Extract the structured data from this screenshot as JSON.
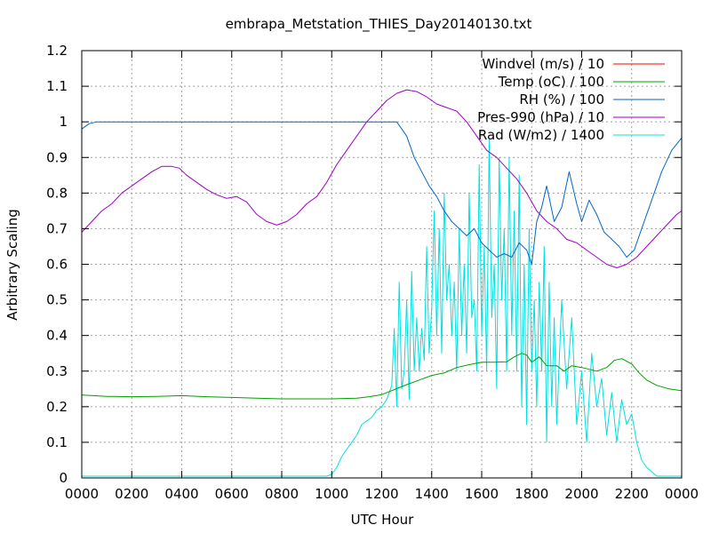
{
  "chart_data": {
    "type": "line",
    "title": "embrapa_Metstation_THIES_Day20140130.txt",
    "xlabel": "UTC Hour",
    "ylabel": "Arbitrary Scaling",
    "xlim": [
      0,
      24
    ],
    "ylim": [
      0,
      1.2
    ],
    "x_ticks": [
      0,
      2,
      4,
      6,
      8,
      10,
      12,
      14,
      16,
      18,
      20,
      22,
      24
    ],
    "x_tick_labels": [
      "0000",
      "0200",
      "0400",
      "0600",
      "0800",
      "1000",
      "1200",
      "1400",
      "1600",
      "1800",
      "2000",
      "2200",
      "0000"
    ],
    "y_ticks": [
      0,
      0.1,
      0.2,
      0.3,
      0.4,
      0.5,
      0.6,
      0.7,
      0.8,
      0.9,
      1,
      1.1,
      1.2
    ],
    "y_tick_labels": [
      "0",
      "0.1",
      "0.2",
      "0.3",
      "0.4",
      "0.5",
      "0.6",
      "0.7",
      "0.8",
      "0.9",
      "1",
      "1.1",
      "1.2"
    ],
    "grid": true,
    "legend_position": "top-right",
    "series": [
      {
        "name": "Windvel (m/s) / 10",
        "color": "#ff0000",
        "x": [],
        "y": []
      },
      {
        "name": "Temp (oC) / 100",
        "color": "#00a000",
        "x": [
          0,
          1,
          2,
          3,
          4,
          5,
          6,
          7,
          8,
          9,
          10,
          11,
          11.5,
          12,
          12.5,
          13,
          13.5,
          14,
          14.5,
          15,
          15.5,
          16,
          16.5,
          17,
          17.3,
          17.6,
          17.8,
          18,
          18.3,
          18.6,
          19,
          19.3,
          19.6,
          20,
          20.3,
          20.6,
          21,
          21.3,
          21.6,
          22,
          22.3,
          22.6,
          23,
          23.5,
          24
        ],
        "y": [
          0.233,
          0.229,
          0.228,
          0.229,
          0.231,
          0.228,
          0.226,
          0.224,
          0.222,
          0.222,
          0.222,
          0.224,
          0.228,
          0.234,
          0.248,
          0.262,
          0.275,
          0.288,
          0.295,
          0.31,
          0.318,
          0.325,
          0.325,
          0.326,
          0.34,
          0.35,
          0.345,
          0.325,
          0.34,
          0.315,
          0.315,
          0.3,
          0.315,
          0.31,
          0.305,
          0.3,
          0.31,
          0.33,
          0.335,
          0.32,
          0.295,
          0.275,
          0.26,
          0.25,
          0.245
        ]
      },
      {
        "name": "RH (%) / 100",
        "color": "#0066cc",
        "x": [
          0,
          0.3,
          0.6,
          1,
          2,
          4,
          6,
          8,
          10,
          12,
          12.6,
          13,
          13.3,
          13.6,
          13.9,
          14.2,
          14.5,
          14.8,
          15.1,
          15.4,
          15.7,
          16,
          16.3,
          16.6,
          16.9,
          17.2,
          17.5,
          17.8,
          18,
          18.2,
          18.4,
          18.6,
          18.9,
          19.2,
          19.5,
          19.8,
          20,
          20.3,
          20.6,
          20.9,
          21.2,
          21.5,
          21.8,
          22.1,
          22.4,
          22.8,
          23.2,
          23.6,
          24
        ],
        "y": [
          0.98,
          0.995,
          1.0,
          1.0,
          1.0,
          1.0,
          1.0,
          1.0,
          1.0,
          1.0,
          1.0,
          0.96,
          0.9,
          0.86,
          0.82,
          0.79,
          0.75,
          0.72,
          0.7,
          0.68,
          0.7,
          0.66,
          0.64,
          0.62,
          0.63,
          0.62,
          0.66,
          0.64,
          0.6,
          0.72,
          0.76,
          0.82,
          0.72,
          0.76,
          0.86,
          0.77,
          0.72,
          0.78,
          0.74,
          0.69,
          0.67,
          0.65,
          0.62,
          0.64,
          0.7,
          0.78,
          0.86,
          0.92,
          0.955
        ]
      },
      {
        "name": "Pres-990 (hPa) / 10",
        "color": "#a000c8",
        "x": [
          0,
          0.4,
          0.8,
          1.2,
          1.6,
          2.0,
          2.4,
          2.8,
          3.2,
          3.6,
          3.9,
          4.2,
          4.6,
          5.0,
          5.4,
          5.8,
          6.2,
          6.6,
          7.0,
          7.4,
          7.8,
          8.2,
          8.6,
          9.0,
          9.4,
          9.8,
          10.2,
          10.6,
          11.0,
          11.4,
          11.8,
          12.2,
          12.6,
          13.0,
          13.4,
          13.8,
          14.2,
          14.6,
          15.0,
          15.4,
          15.8,
          16.2,
          16.6,
          17.0,
          17.4,
          17.8,
          18.2,
          18.6,
          19.0,
          19.4,
          19.8,
          20.2,
          20.6,
          21.0,
          21.4,
          21.8,
          22.2,
          22.6,
          23.0,
          23.4,
          23.8,
          24
        ],
        "y": [
          0.69,
          0.72,
          0.75,
          0.77,
          0.8,
          0.82,
          0.84,
          0.86,
          0.875,
          0.875,
          0.87,
          0.85,
          0.83,
          0.81,
          0.795,
          0.785,
          0.79,
          0.775,
          0.74,
          0.72,
          0.71,
          0.72,
          0.74,
          0.77,
          0.79,
          0.83,
          0.88,
          0.92,
          0.96,
          1.0,
          1.03,
          1.06,
          1.08,
          1.09,
          1.085,
          1.07,
          1.05,
          1.04,
          1.03,
          1.0,
          0.96,
          0.92,
          0.9,
          0.87,
          0.84,
          0.8,
          0.75,
          0.72,
          0.7,
          0.67,
          0.66,
          0.64,
          0.62,
          0.6,
          0.59,
          0.6,
          0.62,
          0.65,
          0.68,
          0.71,
          0.74,
          0.75
        ]
      },
      {
        "name": "Rad (W/m2) / 1400",
        "color": "#00e0e0",
        "x": [
          0,
          2,
          4,
          6,
          8,
          9,
          9.8,
          10.0,
          10.2,
          10.4,
          10.6,
          10.8,
          11.0,
          11.2,
          11.4,
          11.6,
          11.8,
          12.0,
          12.2,
          12.4,
          12.5,
          12.6,
          12.7,
          12.8,
          12.9,
          13.0,
          13.1,
          13.2,
          13.3,
          13.4,
          13.5,
          13.6,
          13.7,
          13.8,
          13.9,
          14.0,
          14.1,
          14.2,
          14.3,
          14.4,
          14.5,
          14.6,
          14.7,
          14.8,
          14.9,
          15.0,
          15.1,
          15.2,
          15.3,
          15.4,
          15.5,
          15.6,
          15.7,
          15.8,
          15.9,
          16.0,
          16.1,
          16.2,
          16.3,
          16.4,
          16.5,
          16.6,
          16.7,
          16.8,
          16.9,
          17.0,
          17.1,
          17.2,
          17.3,
          17.4,
          17.5,
          17.6,
          17.7,
          17.8,
          17.9,
          18.0,
          18.1,
          18.2,
          18.3,
          18.4,
          18.5,
          18.6,
          18.7,
          18.8,
          18.9,
          19.0,
          19.2,
          19.4,
          19.6,
          19.8,
          20.0,
          20.2,
          20.4,
          20.6,
          20.8,
          21.0,
          21.2,
          21.4,
          21.6,
          21.8,
          22.0,
          22.2,
          22.4,
          22.6,
          23.0,
          23.5,
          24
        ],
        "y": [
          0.005,
          0.005,
          0.005,
          0.005,
          0.005,
          0.005,
          0.005,
          0.01,
          0.03,
          0.06,
          0.08,
          0.1,
          0.12,
          0.15,
          0.16,
          0.17,
          0.19,
          0.2,
          0.22,
          0.26,
          0.42,
          0.2,
          0.55,
          0.25,
          0.3,
          0.5,
          0.22,
          0.58,
          0.3,
          0.45,
          0.3,
          0.42,
          0.33,
          0.65,
          0.35,
          0.48,
          0.75,
          0.4,
          0.7,
          0.35,
          0.8,
          0.5,
          0.6,
          0.4,
          0.55,
          0.3,
          0.7,
          0.4,
          0.6,
          0.35,
          0.8,
          0.45,
          0.5,
          0.3,
          0.88,
          0.4,
          0.65,
          0.3,
          0.95,
          0.45,
          0.6,
          0.25,
          0.9,
          0.5,
          0.7,
          0.3,
          0.9,
          0.4,
          0.75,
          0.3,
          0.85,
          0.2,
          0.6,
          0.15,
          0.7,
          0.3,
          0.5,
          0.2,
          0.55,
          0.3,
          0.65,
          0.1,
          0.55,
          0.2,
          0.45,
          0.15,
          0.5,
          0.25,
          0.45,
          0.15,
          0.3,
          0.1,
          0.35,
          0.2,
          0.28,
          0.12,
          0.24,
          0.1,
          0.22,
          0.15,
          0.18,
          0.1,
          0.05,
          0.03,
          0.005,
          0.005,
          0.005
        ]
      }
    ]
  }
}
